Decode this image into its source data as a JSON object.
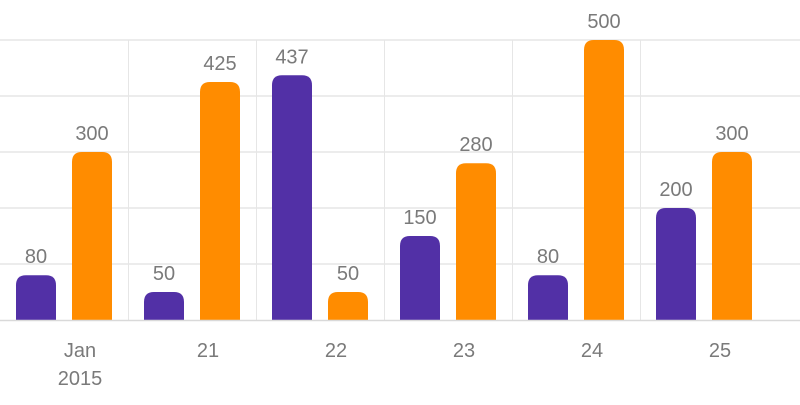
{
  "chart_data": {
    "type": "bar",
    "title": "",
    "xlabel": "",
    "ylabel": "",
    "categories": [
      [
        "Jan",
        "2015"
      ],
      [
        "21"
      ],
      [
        "22"
      ],
      [
        "23"
      ],
      [
        "24"
      ],
      [
        "25"
      ]
    ],
    "series": [
      {
        "values": [
          80,
          50,
          437,
          150,
          80,
          200
        ],
        "color": "#5230A6"
      },
      {
        "values": [
          300,
          425,
          50,
          280,
          500,
          300
        ],
        "color": "#FF8C00"
      }
    ],
    "ylim": [
      0,
      500
    ],
    "grid": true,
    "legend": "none",
    "style": {
      "grid_color": "#E6E6E6",
      "axis_color": "#D9D9D9",
      "label_color": "#7A7A7A"
    }
  }
}
